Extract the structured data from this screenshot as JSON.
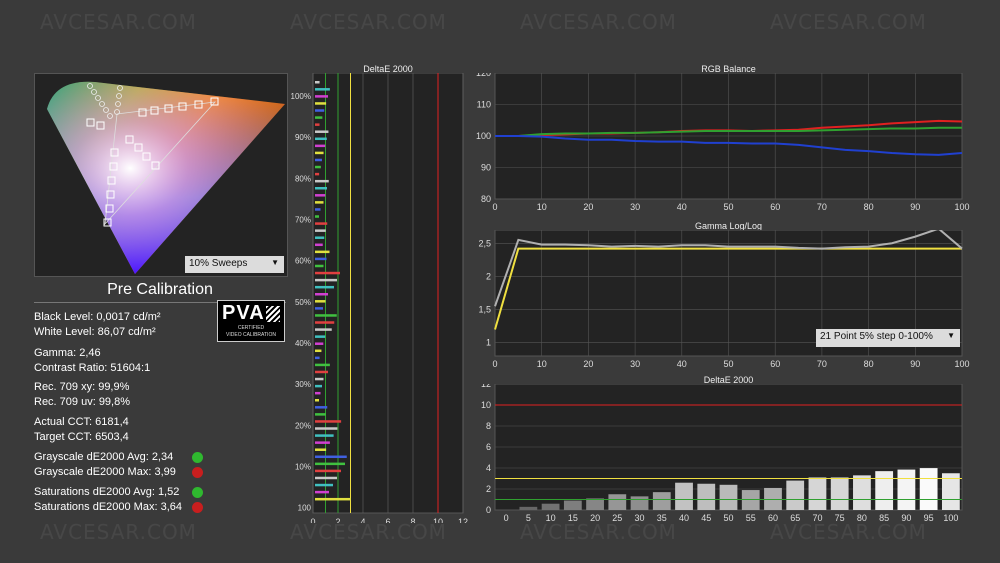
{
  "watermark": "AVCESAR.COM",
  "cie": {
    "dropdown_label": "10% Sweeps",
    "caption": "Pre Calibration"
  },
  "logo": {
    "main": "PVA",
    "line1": "CERTIFIED",
    "line2": "VIDEO CALIBRATION"
  },
  "stats": {
    "black_level": "Black Level: 0,0017 cd/m²",
    "white_level": "White Level: 86,07 cd/m²",
    "gamma": "Gamma: 2,46",
    "contrast": "Contrast Ratio: 51604:1",
    "rec709_xy": "Rec. 709 xy: 99,9%",
    "rec709_uv": "Rec. 709 uv: 99,8%",
    "actual_cct": "Actual CCT: 6181,4",
    "target_cct": "Target CCT: 6503,4",
    "gs_avg": "Grayscale dE2000 Avg: 2,34",
    "gs_max": "Grayscale dE2000 Max: 3,99",
    "sat_avg": "Saturations dE2000 Avg: 1,52",
    "sat_max": "Saturations dE2000 Max: 3,64"
  },
  "colors": {
    "good": "#2fb82f",
    "bad": "#c81e1e",
    "red": "#e02020",
    "green": "#30a030",
    "blue": "#2040d0",
    "yellow": "#f0e040",
    "gray": "#b0b0b0"
  },
  "gamma_dropdown": "21 Point 5% step 0-100%",
  "chart_data": [
    {
      "type": "bar",
      "title": "DeltaE 2000",
      "orientation": "horizontal",
      "categories": [
        "100%",
        "90%",
        "80%",
        "70%",
        "60%",
        "50%",
        "40%",
        "30%",
        "20%",
        "10%",
        "100"
      ],
      "x_ticks": [
        "0",
        "2",
        "4",
        "6",
        "8",
        "10",
        "12"
      ],
      "xlim": [
        0,
        12
      ],
      "reference_lines": [
        1,
        2,
        3,
        10
      ],
      "values": [
        1.5,
        1.3,
        1.4,
        1.2,
        2.4,
        2.0,
        1.5,
        1.2,
        3.0,
        3.2,
        3.4
      ]
    },
    {
      "type": "line",
      "title": "RGB Balance",
      "x": [
        0,
        5,
        10,
        15,
        20,
        25,
        30,
        35,
        40,
        45,
        50,
        55,
        60,
        65,
        70,
        75,
        80,
        85,
        90,
        95,
        100
      ],
      "x_ticks": [
        "0",
        "10",
        "20",
        "30",
        "40",
        "50",
        "60",
        "70",
        "80",
        "90",
        "100"
      ],
      "y_ticks": [
        "120",
        "110",
        "100",
        "90",
        "80"
      ],
      "ylim": [
        80,
        120
      ],
      "series": [
        {
          "name": "Red",
          "values": [
            100,
            100,
            100.3,
            100.5,
            100.8,
            100.8,
            101,
            101.2,
            101.6,
            101.8,
            101.8,
            101.6,
            101.8,
            102,
            102.6,
            103,
            103.4,
            104,
            104.4,
            104.8,
            104.6
          ]
        },
        {
          "name": "Green",
          "values": [
            100,
            100,
            100.6,
            100.8,
            100.8,
            101,
            101,
            101.2,
            101.4,
            101.6,
            101.6,
            101.6,
            101.6,
            101.6,
            101.8,
            102,
            102.2,
            102.4,
            102.4,
            102.6,
            102.6
          ]
        },
        {
          "name": "Blue",
          "values": [
            100,
            100,
            99.8,
            99.2,
            98.8,
            98.8,
            98.4,
            98.2,
            98.2,
            97.8,
            97.8,
            97.6,
            97.6,
            97.2,
            96.4,
            95.6,
            95.2,
            94.6,
            94.2,
            94,
            94.6
          ]
        }
      ]
    },
    {
      "type": "line",
      "title": "Gamma Log/Log",
      "x": [
        0,
        5,
        10,
        15,
        20,
        25,
        30,
        35,
        40,
        45,
        50,
        55,
        60,
        65,
        70,
        75,
        80,
        85,
        90,
        95,
        100
      ],
      "x_ticks": [
        "0",
        "10",
        "20",
        "30",
        "40",
        "50",
        "60",
        "70",
        "80",
        "90",
        "100"
      ],
      "y_ticks": [
        "2,5",
        "2",
        "1,5",
        "1"
      ],
      "ylim": [
        0.8,
        2.7
      ],
      "series": [
        {
          "name": "Target",
          "values": [
            1.2,
            2.42,
            2.42,
            2.42,
            2.42,
            2.42,
            2.42,
            2.42,
            2.42,
            2.42,
            2.42,
            2.42,
            2.42,
            2.42,
            2.42,
            2.42,
            2.42,
            2.42,
            2.42,
            2.42,
            2.42
          ]
        },
        {
          "name": "Measured",
          "values": [
            1.55,
            2.55,
            2.48,
            2.48,
            2.47,
            2.45,
            2.46,
            2.45,
            2.47,
            2.47,
            2.45,
            2.45,
            2.45,
            2.43,
            2.42,
            2.44,
            2.45,
            2.5,
            2.6,
            2.72,
            2.42
          ]
        }
      ]
    },
    {
      "type": "bar",
      "title": "DeltaE 2000",
      "categories": [
        "0",
        "5",
        "10",
        "15",
        "20",
        "25",
        "30",
        "35",
        "40",
        "45",
        "50",
        "55",
        "60",
        "65",
        "70",
        "75",
        "80",
        "85",
        "90",
        "95",
        "100"
      ],
      "y_ticks": [
        "12",
        "10",
        "8",
        "6",
        "4",
        "2",
        "0"
      ],
      "ylim": [
        0,
        12
      ],
      "reference_lines": [
        10,
        3,
        1
      ],
      "values": [
        0,
        0.3,
        0.6,
        0.9,
        1.1,
        1.5,
        1.3,
        1.7,
        2.6,
        2.5,
        2.4,
        1.9,
        2.1,
        2.8,
        3.1,
        3.1,
        3.3,
        3.7,
        3.85,
        3.99,
        3.5
      ]
    }
  ]
}
